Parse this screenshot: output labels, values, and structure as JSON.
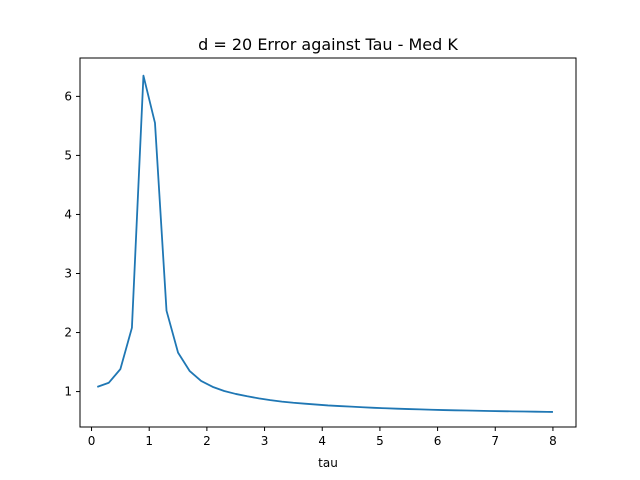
{
  "chart_data": {
    "type": "line",
    "title": "d = 20 Error against Tau - Med K",
    "xlabel": "tau",
    "ylabel": "",
    "xlim": [
      -0.2,
      8.4
    ],
    "ylim": [
      0.4,
      6.65
    ],
    "x_ticks": [
      0,
      1,
      2,
      3,
      4,
      5,
      6,
      7,
      8
    ],
    "y_ticks": [
      1,
      2,
      3,
      4,
      5,
      6
    ],
    "grid": false,
    "legend": "none",
    "line_color": "#1f77b4",
    "series": [
      {
        "x": [
          0.1,
          0.3,
          0.5,
          0.7,
          0.9,
          1.1,
          1.3,
          1.5,
          1.7,
          1.9,
          2.1,
          2.3,
          2.5,
          2.7,
          2.9,
          3.1,
          3.3,
          3.5,
          3.7,
          3.9,
          4.1,
          4.3,
          4.5,
          4.7,
          4.9,
          5.1,
          5.3,
          5.5,
          5.7,
          5.9,
          6.1,
          6.3,
          6.5,
          6.7,
          6.9,
          7.1,
          7.3,
          7.5,
          7.7,
          7.9,
          8.0
        ],
        "values": [
          1.08,
          1.15,
          1.38,
          2.08,
          6.35,
          5.55,
          2.37,
          1.66,
          1.35,
          1.18,
          1.08,
          1.01,
          0.96,
          0.92,
          0.885,
          0.855,
          0.83,
          0.81,
          0.795,
          0.78,
          0.765,
          0.755,
          0.745,
          0.735,
          0.725,
          0.717,
          0.71,
          0.704,
          0.698,
          0.692,
          0.687,
          0.683,
          0.679,
          0.675,
          0.671,
          0.668,
          0.665,
          0.662,
          0.659,
          0.656,
          0.655
        ]
      }
    ]
  }
}
